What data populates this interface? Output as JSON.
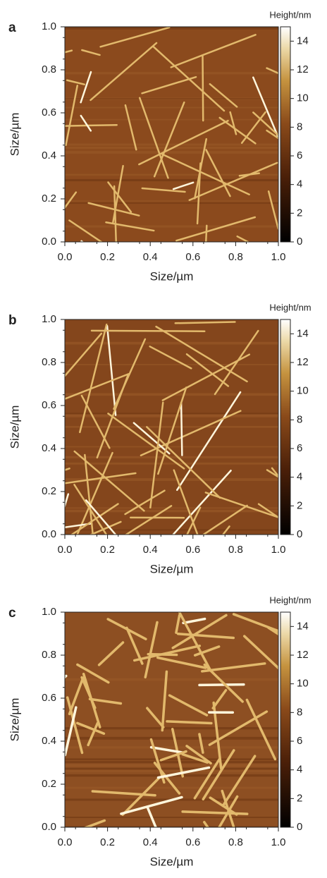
{
  "chart_data": [
    {
      "type": "heatmap",
      "panel": "a",
      "xlabel": "Size/µm",
      "ylabel": "Size/µm",
      "colorbar_label": "Height/nm",
      "xlim": [
        0,
        1
      ],
      "ylim": [
        0,
        1
      ],
      "xticks": [
        {
          "value": 0,
          "label": "0.0"
        },
        0.2,
        0.4,
        0.6,
        0.8,
        {
          "value": 1,
          "label": "1.0"
        }
      ],
      "yticks": [
        {
          "value": 0,
          "label": "0.0"
        },
        0.2,
        0.4,
        0.6,
        0.8,
        {
          "value": 1,
          "label": "1.0"
        }
      ],
      "clim": [
        0,
        15
      ],
      "cticks": [
        0,
        2,
        4,
        6,
        8,
        10,
        12,
        14
      ]
    },
    {
      "type": "heatmap",
      "panel": "b",
      "xlabel": "Size/µm",
      "ylabel": "Size/µm",
      "colorbar_label": "Height/nm",
      "xlim": [
        0,
        1
      ],
      "ylim": [
        0,
        1
      ],
      "xticks": [
        {
          "value": 0,
          "label": "0.0"
        },
        0.2,
        0.4,
        0.6,
        0.8,
        {
          "value": 1,
          "label": "1.0"
        }
      ],
      "yticks": [
        {
          "value": 0,
          "label": "0.0"
        },
        0.2,
        0.4,
        0.6,
        0.8,
        {
          "value": 1,
          "label": "1.0"
        }
      ],
      "clim": [
        0,
        15
      ],
      "cticks": [
        0,
        2,
        4,
        6,
        8,
        10,
        12,
        14
      ]
    },
    {
      "type": "heatmap",
      "panel": "c",
      "xlabel": "Size/µm",
      "ylabel": "Size/µm",
      "colorbar_label": "Height/nm",
      "xlim": [
        0,
        1
      ],
      "ylim": [
        0,
        1
      ],
      "xticks": [
        {
          "value": 0,
          "label": "0.0"
        },
        0.2,
        0.4,
        0.6,
        0.8,
        {
          "value": 1,
          "label": "1.0"
        }
      ],
      "yticks": [
        {
          "value": 0,
          "label": "0.0"
        },
        0.2,
        0.4,
        0.6,
        0.8,
        {
          "value": 1,
          "label": "1.0"
        }
      ],
      "clim": [
        0,
        15
      ],
      "cticks": [
        0,
        2,
        4,
        6,
        8,
        10,
        12,
        14
      ]
    }
  ]
}
